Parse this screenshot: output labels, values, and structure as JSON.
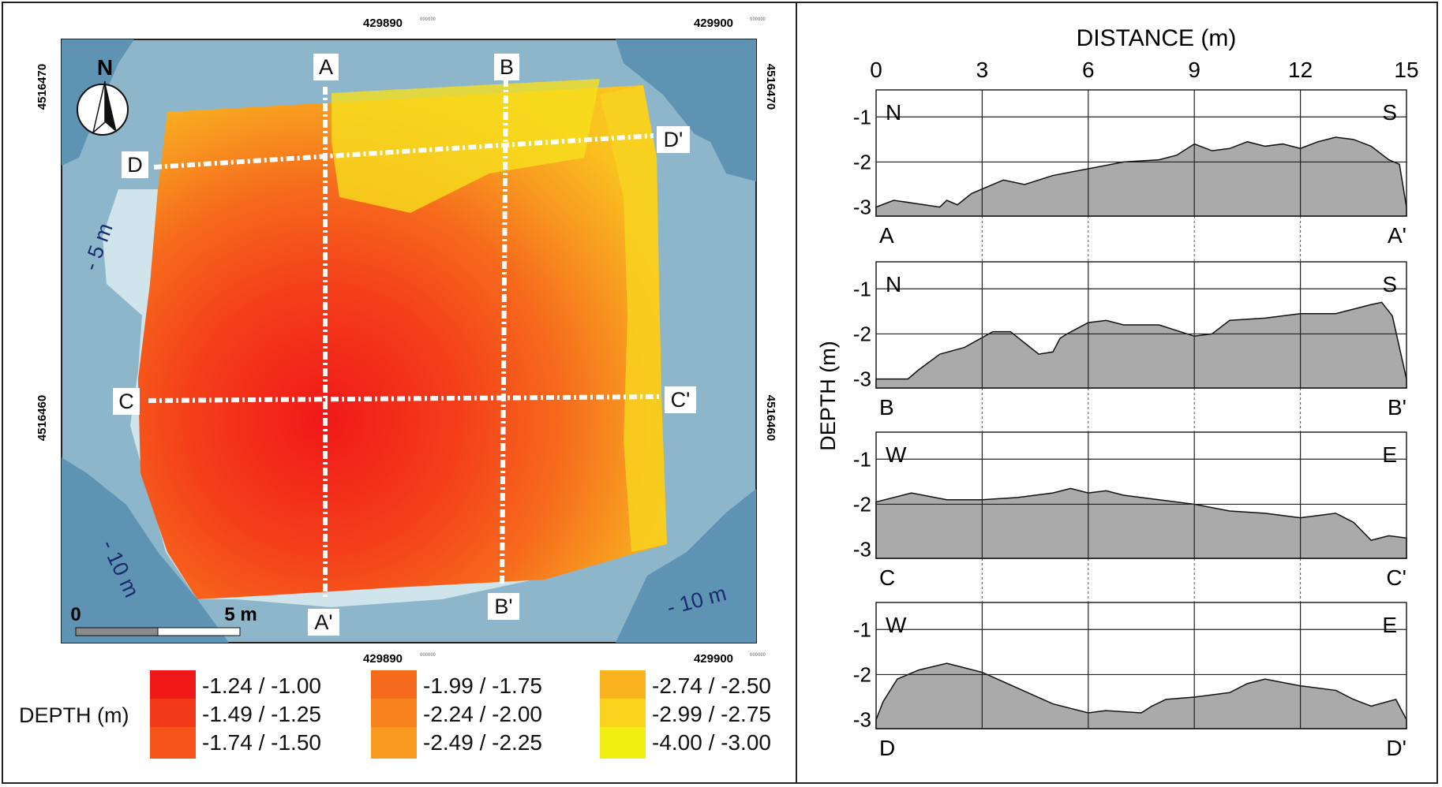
{
  "map": {
    "north_label": "N",
    "x_ticks": [
      {
        "value": "429890",
        "sub": "000000"
      },
      {
        "value": "429900",
        "sub": "000000"
      }
    ],
    "y_ticks": [
      "4516470",
      "4516460"
    ],
    "contour_labels": {
      "minus5": "- 5 m",
      "minus10_left": "- 10 m",
      "minus10_right": "- 10 m"
    },
    "scale": {
      "zero": "0",
      "five": "5 m"
    },
    "profile_labels": {
      "A": "A",
      "A_prime": "A'",
      "B": "B",
      "B_prime": "B'",
      "C": "C",
      "C_prime": "C'",
      "D": "D",
      "D_prime": "D'"
    }
  },
  "legend": {
    "title": "DEPTH (m)",
    "items": [
      {
        "label": "-1.24 / -1.00",
        "color": "#f01818"
      },
      {
        "label": "-1.49 / -1.25",
        "color": "#f33a18"
      },
      {
        "label": "-1.74 / -1.50",
        "color": "#f5541a"
      },
      {
        "label": "-1.99 / -1.75",
        "color": "#f66a1c"
      },
      {
        "label": "-2.24 / -2.00",
        "color": "#f7821e"
      },
      {
        "label": "-2.49 / -2.25",
        "color": "#f89a20"
      },
      {
        "label": "-2.74 / -2.50",
        "color": "#f9b41f"
      },
      {
        "label": "-2.99 / -2.75",
        "color": "#fbd21c"
      },
      {
        "label": "-4.00 / -3.00",
        "color": "#f2ee12"
      }
    ]
  },
  "chart_data": {
    "type": "area",
    "title": "DISTANCE (m)",
    "xlabel": "DISTANCE (m)",
    "ylabel": "DEPTH (m)",
    "x_ticks": [
      "0",
      "3",
      "6",
      "9",
      "12",
      "15"
    ],
    "y_ticks": [
      "-1",
      "-2",
      "-3"
    ],
    "xlim": [
      0,
      15
    ],
    "ylim": [
      -3.2,
      -0.4
    ],
    "grid": true,
    "profiles": [
      {
        "name": "A-A'",
        "start": "A",
        "end": "A'",
        "dir_left": "N",
        "dir_right": "S",
        "x": [
          0,
          0.5,
          1.8,
          2.0,
          2.3,
          2.7,
          3.0,
          3.6,
          4.2,
          5.0,
          6.0,
          7.0,
          8.0,
          8.5,
          9.0,
          9.5,
          10.0,
          10.5,
          11.0,
          11.5,
          12.0,
          12.5,
          13.0,
          13.5,
          14.0,
          14.5,
          14.8,
          15.0
        ],
        "y": [
          -3.0,
          -2.85,
          -3.0,
          -2.85,
          -2.95,
          -2.7,
          -2.6,
          -2.4,
          -2.5,
          -2.3,
          -2.15,
          -2.0,
          -1.95,
          -1.85,
          -1.6,
          -1.75,
          -1.7,
          -1.55,
          -1.65,
          -1.6,
          -1.7,
          -1.55,
          -1.45,
          -1.5,
          -1.65,
          -1.95,
          -2.05,
          -3.0
        ]
      },
      {
        "name": "B-B'",
        "start": "B",
        "end": "B'",
        "dir_left": "N",
        "dir_right": "S",
        "x": [
          0,
          0.9,
          1.2,
          1.8,
          2.5,
          3.3,
          3.8,
          4.2,
          4.6,
          5.0,
          5.2,
          5.4,
          6.0,
          6.5,
          7.0,
          8.0,
          9.0,
          9.5,
          10.0,
          11.0,
          12.0,
          13.0,
          13.5,
          14.0,
          14.3,
          14.6,
          15.0
        ],
        "y": [
          -3.0,
          -3.0,
          -2.8,
          -2.45,
          -2.3,
          -1.95,
          -1.95,
          -2.2,
          -2.45,
          -2.4,
          -2.1,
          -2.0,
          -1.75,
          -1.7,
          -1.8,
          -1.8,
          -2.05,
          -2.0,
          -1.7,
          -1.65,
          -1.55,
          -1.55,
          -1.45,
          -1.35,
          -1.3,
          -1.6,
          -3.0
        ]
      },
      {
        "name": "C-C'",
        "start": "C",
        "end": "C'",
        "dir_left": "W",
        "dir_right": "E",
        "x": [
          0,
          1.0,
          2.0,
          3.0,
          4.0,
          5.0,
          5.5,
          6.0,
          6.5,
          7.0,
          8.0,
          9.0,
          10.0,
          11.0,
          12.0,
          13.0,
          13.5,
          14.0,
          14.5,
          15.0
        ],
        "y": [
          -1.95,
          -1.75,
          -1.9,
          -1.9,
          -1.85,
          -1.75,
          -1.65,
          -1.75,
          -1.7,
          -1.8,
          -1.9,
          -2.0,
          -2.15,
          -2.2,
          -2.3,
          -2.2,
          -2.4,
          -2.8,
          -2.7,
          -2.75
        ]
      },
      {
        "name": "D-D'",
        "start": "D",
        "end": "D'",
        "dir_left": "W",
        "dir_right": "E",
        "x": [
          0,
          0.2,
          0.6,
          1.2,
          2.0,
          2.5,
          3.0,
          4.0,
          5.0,
          6.0,
          6.5,
          7.5,
          7.8,
          8.2,
          9.0,
          10.0,
          10.5,
          11.0,
          12.0,
          13.0,
          13.5,
          14.0,
          14.7,
          15.0
        ],
        "y": [
          -3.0,
          -2.6,
          -2.1,
          -1.9,
          -1.75,
          -1.85,
          -1.95,
          -2.3,
          -2.65,
          -2.85,
          -2.8,
          -2.85,
          -2.7,
          -2.55,
          -2.5,
          -2.4,
          -2.2,
          -2.1,
          -2.25,
          -2.35,
          -2.55,
          -2.7,
          -2.55,
          -3.0
        ]
      }
    ]
  }
}
